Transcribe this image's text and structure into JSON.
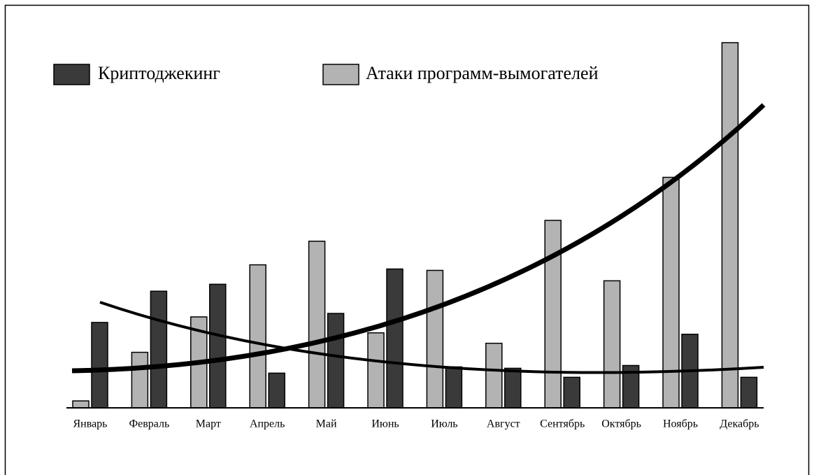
{
  "chart_data": {
    "type": "bar",
    "categories": [
      "Январь",
      "Февраль",
      "Март",
      "Апрель",
      "Май",
      "Июнь",
      "Июль",
      "Август",
      "Сентябрь",
      "Октябрь",
      "Ноябрь",
      "Декабрь"
    ],
    "series": [
      {
        "name": "Атаки программ-вымогателей",
        "color": "#b3b3b3",
        "values": [
          10,
          80,
          131,
          206,
          240,
          108,
          198,
          93,
          270,
          183,
          332,
          526
        ]
      },
      {
        "name": "Криптоджекинг",
        "color": "#3a3a3a",
        "values": [
          123,
          168,
          178,
          50,
          136,
          200,
          59,
          57,
          44,
          61,
          106,
          44
        ]
      }
    ],
    "ylim": [
      0,
      530
    ]
  }
}
